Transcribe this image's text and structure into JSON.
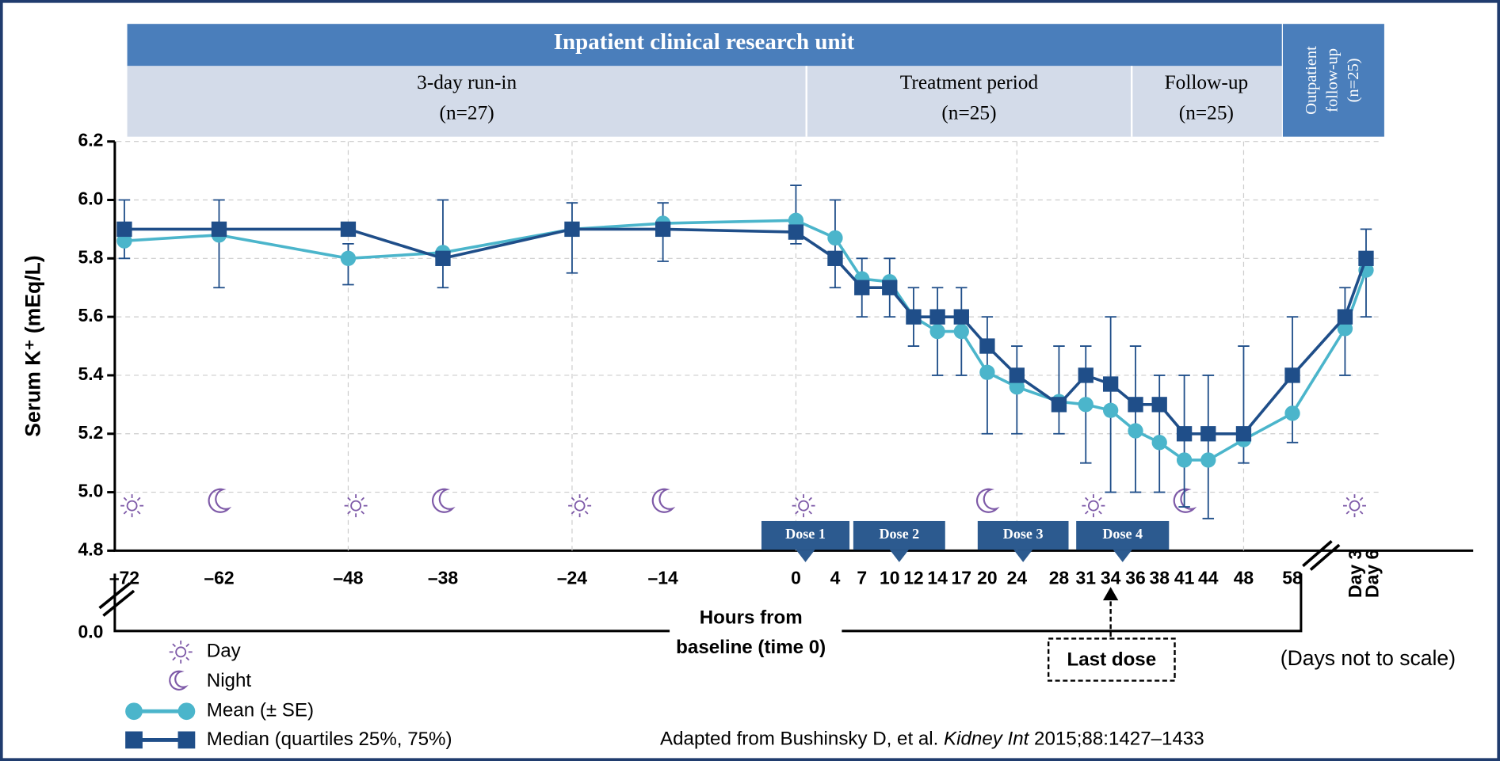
{
  "chart_data": {
    "type": "line",
    "header": {
      "title": "Inpatient clinical research unit",
      "periods": [
        {
          "name": "3-day run-in",
          "n": "(n=27)"
        },
        {
          "name": "Treatment period",
          "n": "(n=25)"
        },
        {
          "name": "Follow-up",
          "n": "(n=25)"
        }
      ],
      "outpatient": [
        "Outpatient",
        "follow-up",
        "(n=25)"
      ]
    },
    "y_label": "Serum K⁺ (mEq/L)",
    "x_label": [
      "Hours from",
      "baseline (time 0)"
    ],
    "categories": [
      "–72",
      "–62",
      "–48",
      "–38",
      "–24",
      "–14",
      "0",
      "4",
      "7",
      "10",
      "12",
      "14",
      "17",
      "20",
      "24",
      "28",
      "31",
      "34",
      "36",
      "38",
      "41",
      "44",
      "48",
      "58",
      "Day 3",
      "Day 6"
    ],
    "series": [
      {
        "name": "Mean (± SE)",
        "color": "#4bb5cb",
        "values": [
          5.86,
          5.88,
          5.8,
          5.82,
          5.9,
          5.92,
          5.93,
          5.87,
          5.73,
          5.72,
          5.6,
          5.55,
          5.55,
          5.41,
          5.36,
          5.31,
          5.3,
          5.28,
          5.21,
          5.17,
          5.11,
          5.11,
          5.18,
          5.27,
          5.56,
          5.76
        ]
      },
      {
        "name": "Median (quartiles 25%, 75%)",
        "color": "#1f4e89",
        "values": [
          5.9,
          5.9,
          5.9,
          5.8,
          5.9,
          5.9,
          5.89,
          5.8,
          5.7,
          5.7,
          5.6,
          5.6,
          5.6,
          5.5,
          5.4,
          5.3,
          5.4,
          5.37,
          5.3,
          5.3,
          5.2,
          5.2,
          5.2,
          5.4,
          5.6,
          5.8
        ],
        "lower": [
          5.8,
          5.7,
          5.71,
          5.7,
          5.75,
          5.79,
          5.85,
          5.7,
          5.6,
          5.6,
          5.5,
          5.4,
          5.4,
          5.2,
          5.2,
          5.2,
          5.1,
          5.0,
          5.0,
          5.0,
          4.95,
          4.91,
          5.1,
          5.17,
          5.4,
          5.6
        ],
        "upper": [
          6.0,
          6.0,
          5.85,
          6.0,
          5.99,
          5.99,
          6.05,
          6.0,
          5.8,
          5.8,
          5.7,
          5.7,
          5.7,
          5.6,
          5.5,
          5.5,
          5.5,
          5.6,
          5.5,
          5.4,
          5.4,
          5.4,
          5.5,
          5.6,
          5.7,
          5.9
        ]
      }
    ],
    "ylim": [
      4.8,
      6.2
    ],
    "yticks": [
      4.8,
      {
        "value": 5.0,
        "label": "5.0"
      },
      5.2,
      5.4,
      5.6,
      5.8,
      {
        "value": 6.0,
        "label": "6.0"
      },
      6.2
    ],
    "y_break_label": "0.0",
    "grid": true,
    "doses": [
      "Dose 1",
      "Dose 2",
      "Dose 3",
      "Dose 4"
    ],
    "icon_legend": {
      "day": "Day",
      "night": "Night"
    },
    "annotations": {
      "last_dose": "Last dose",
      "not_to_scale": "(Days not to scale)"
    },
    "source": {
      "before": "Adapted from Bushinsky D, et al. ",
      "journal": "Kidney Int",
      "after": " 2015;88:1427–1433"
    }
  }
}
